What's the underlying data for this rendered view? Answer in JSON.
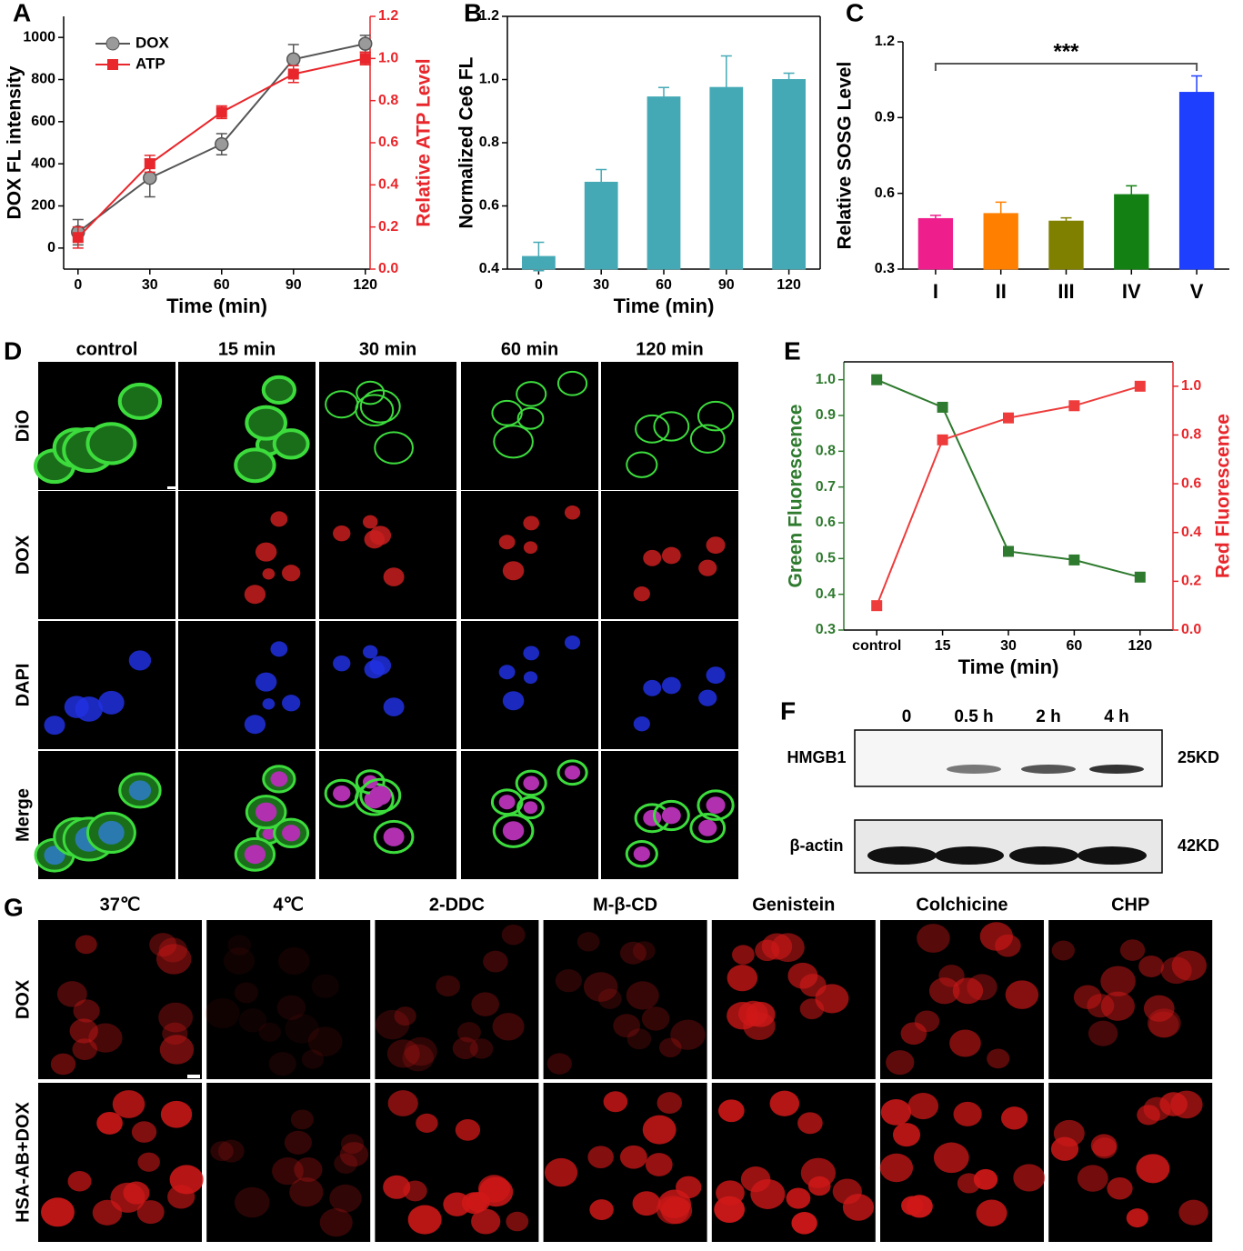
{
  "chart_data": [
    {
      "label": "A",
      "type": "line",
      "x": [
        0,
        30,
        60,
        90,
        120
      ],
      "xlim": [
        -6,
        122
      ],
      "xticks": [
        0,
        30,
        60,
        90,
        120
      ],
      "x_label": "Time (min)",
      "y_label": "DOX FL  intensity",
      "y2_label": "Relative ATP Level",
      "ylim": [
        -100,
        1100
      ],
      "yticks": [
        0,
        200,
        400,
        600,
        800,
        1000
      ],
      "y2lim": [
        0,
        1.2
      ],
      "y2ticks": [
        {
          "value": 0,
          "label": "0.0"
        },
        0.2,
        0.4,
        0.6,
        0.8,
        {
          "value": 1,
          "label": "1.0"
        },
        1.2
      ],
      "y_color": "#000000",
      "y2_color": "#e8262b",
      "legend": "upper left",
      "series": [
        {
          "name": "DOX",
          "color": "#555555",
          "marker": "circle",
          "values": [
            75,
            333,
            493,
            896,
            970
          ],
          "errors": [
            60,
            90,
            50,
            70,
            40
          ]
        },
        {
          "name": "ATP",
          "color": "#e8262b",
          "marker": "square",
          "axis": "y2",
          "values": [
            0.15,
            0.5,
            0.745,
            0.926,
            1.0
          ],
          "errors": [
            0.05,
            0.04,
            0.03,
            0.04,
            0.03
          ]
        }
      ]
    },
    {
      "label": "B",
      "type": "bar",
      "categories": [
        "0",
        "30",
        "60",
        "90",
        "120"
      ],
      "x_label": "Time (min)",
      "y_label": "Normalized Ce6 FL",
      "ylim": [
        0.4,
        1.2
      ],
      "yticks": [
        0.4,
        0.6,
        0.8,
        {
          "value": 1,
          "label": "1.0"
        },
        1.2
      ],
      "y_color": "#000000",
      "color": "#45a9b5",
      "values": [
        0.44,
        0.675,
        0.945,
        0.975,
        1.0
      ],
      "errors": [
        0.045,
        0.04,
        0.03,
        0.1,
        0.02
      ]
    },
    {
      "label": "C",
      "type": "bar",
      "categories": [
        "I",
        "II",
        "III",
        "IV",
        "V"
      ],
      "y_label": "Relative SOSG Level",
      "ylim": [
        0.3,
        1.2
      ],
      "yticks": [
        0.3,
        0.6,
        0.9,
        1.2
      ],
      "y_color": "#000000",
      "colors": [
        "#ee1e8c",
        "#ff8000",
        "#808000",
        "#138013",
        "#1f3fff"
      ],
      "values": [
        0.5,
        0.52,
        0.49,
        0.595,
        1.0
      ],
      "errors": [
        0.013,
        0.045,
        0.013,
        0.035,
        0.065
      ],
      "annotation": "***"
    },
    {
      "label": "E",
      "type": "line",
      "categories": [
        "control",
        "15",
        "30",
        "60",
        "120"
      ],
      "x_label": "Time (min)",
      "y_label": "Green Fluorescence",
      "y2_label": "Red Fluorescence",
      "ylim": [
        0.3,
        1.05
      ],
      "yticks": [
        0.3,
        0.4,
        0.5,
        0.6,
        0.7,
        0.8,
        0.9,
        {
          "value": 1,
          "label": "1.0"
        }
      ],
      "y2lim": [
        0,
        1.1
      ],
      "y2ticks": [
        {
          "value": 0,
          "label": "0.0"
        },
        0.2,
        0.4,
        0.6,
        0.8,
        {
          "value": 1,
          "label": "1.0"
        }
      ],
      "y_color": "#2e7a2e",
      "y2_color": "#e8262b",
      "series": [
        {
          "color": "#2e7a2e",
          "marker": "square",
          "values": [
            1.0,
            0.923,
            0.52,
            0.496,
            0.448
          ]
        },
        {
          "color": "#ee3b3b",
          "marker": "square",
          "axis": "y2",
          "values": [
            0.1,
            0.78,
            0.87,
            0.92,
            1.0
          ]
        }
      ]
    }
  ],
  "panel_d": {
    "label": "D",
    "columns": [
      "control",
      "15 min",
      "30 min",
      "60 min",
      "120 min"
    ],
    "rows": [
      "DiO",
      "DOX",
      "DAPI",
      "Merge"
    ]
  },
  "panel_f": {
    "label": "F",
    "lanes": [
      "0",
      "0.5 h",
      "2 h",
      "4 h"
    ],
    "blots": [
      {
        "name": "HMGB1",
        "size": "25KD"
      },
      {
        "name": "β-actin",
        "size": "42KD"
      }
    ]
  },
  "panel_g": {
    "label": "G",
    "columns": [
      "37℃",
      "4℃",
      "2-DDC",
      "M-β-CD",
      "Genistein",
      "Colchicine",
      "CHP"
    ],
    "rows": [
      "DOX",
      "HSA-AB+DOX"
    ]
  }
}
